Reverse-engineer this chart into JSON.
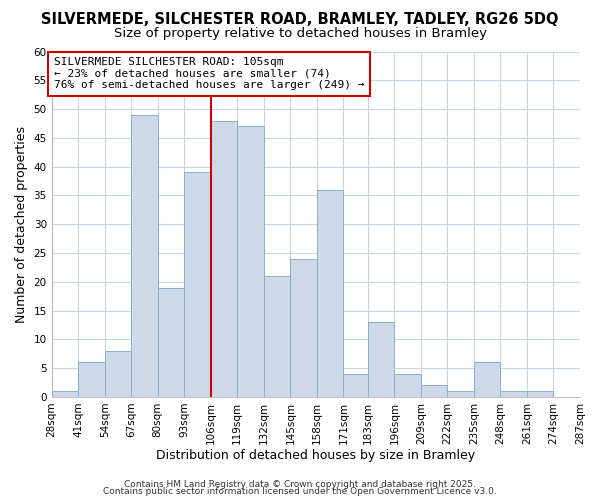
{
  "title_line1": "SILVERMEDE, SILCHESTER ROAD, BRAMLEY, TADLEY, RG26 5DQ",
  "title_line2": "Size of property relative to detached houses in Bramley",
  "xlabel": "Distribution of detached houses by size in Bramley",
  "ylabel": "Number of detached properties",
  "bar_edges": [
    28,
    41,
    54,
    67,
    80,
    93,
    106,
    119,
    132,
    145,
    158,
    171,
    183,
    196,
    209,
    222,
    235,
    248,
    261,
    274,
    287
  ],
  "bar_heights": [
    1,
    6,
    8,
    49,
    19,
    39,
    48,
    47,
    21,
    24,
    36,
    4,
    13,
    4,
    2,
    1,
    6,
    1,
    1,
    0
  ],
  "bar_color": "#cdd9e8",
  "bar_edge_color": "#8ab0cc",
  "vline_x": 106,
  "vline_color": "#cc0000",
  "annotation_text": "SILVERMEDE SILCHESTER ROAD: 105sqm\n← 23% of detached houses are smaller (74)\n76% of semi-detached houses are larger (249) →",
  "annotation_box_color": "#ffffff",
  "annotation_box_edge": "#cc0000",
  "ylim": [
    0,
    60
  ],
  "yticks": [
    0,
    5,
    10,
    15,
    20,
    25,
    30,
    35,
    40,
    45,
    50,
    55,
    60
  ],
  "bg_color": "#ffffff",
  "plot_bg_color": "#ffffff",
  "grid_color": "#c8d4e0",
  "footer_line1": "Contains HM Land Registry data © Crown copyright and database right 2025.",
  "footer_line2": "Contains public sector information licensed under the Open Government Licence v3.0.",
  "title_fontsize": 10.5,
  "subtitle_fontsize": 9.5,
  "axis_label_fontsize": 9,
  "tick_fontsize": 7.5,
  "annotation_fontsize": 8,
  "footer_fontsize": 6.5
}
